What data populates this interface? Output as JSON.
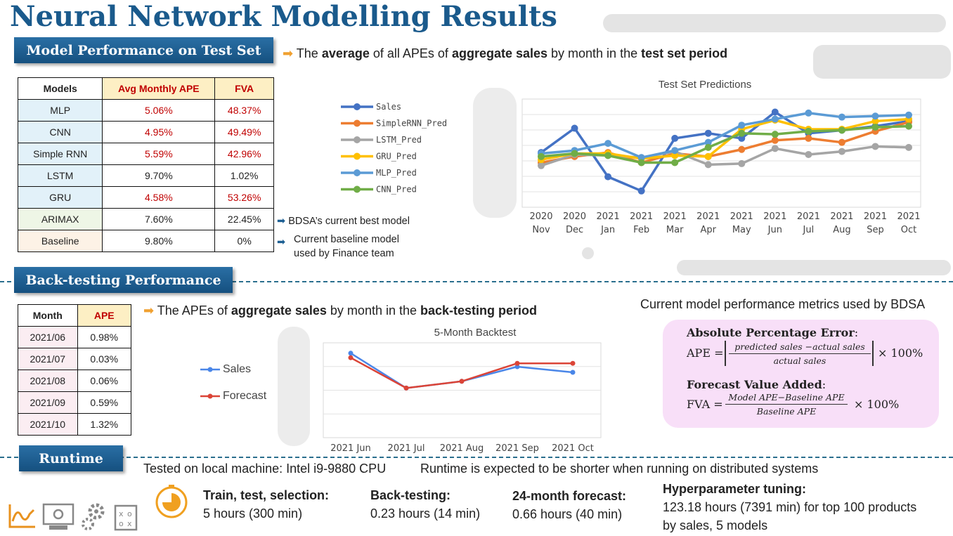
{
  "title": "Neural Network Modelling Results",
  "sections": {
    "test": "Model Performance on Test Set",
    "backtest": "Back-testing Performance",
    "runtime": "Runtime"
  },
  "test_desc": {
    "p1": "The ",
    "b1": "average",
    "p2": " of all APEs of ",
    "b2": "aggregate sales",
    "p3": " by month in the ",
    "b3": "test set period"
  },
  "perf_table": {
    "headers": [
      "Models",
      "Avg Monthly APE",
      "FVA"
    ],
    "rows": [
      {
        "model": "MLP",
        "ape": "5.06%",
        "fva": "48.37%"
      },
      {
        "model": "CNN",
        "ape": "4.95%",
        "fva": "49.49%"
      },
      {
        "model": "Simple RNN",
        "ape": "5.59%",
        "fva": "42.96%"
      },
      {
        "model": "LSTM",
        "ape": "9.70%",
        "fva": "1.02%"
      },
      {
        "model": "GRU",
        "ape": "4.58%",
        "fva": "53.26%"
      },
      {
        "model": "ARIMAX",
        "ape": "7.60%",
        "fva": "22.45%"
      },
      {
        "model": "Baseline",
        "ape": "9.80%",
        "fva": "0%"
      }
    ]
  },
  "notes": {
    "arimax": "BDSA’s current best model",
    "baseline_l1": "Current baseline model",
    "baseline_l2": "used by Finance team"
  },
  "backtest_desc": {
    "p1": "The APEs of ",
    "b1": "aggregate sales",
    "p2": " by month in the ",
    "b2": "back-testing period"
  },
  "backtest_table": {
    "headers": [
      "Month",
      "APE"
    ],
    "rows": [
      {
        "month": "2021/06",
        "ape": "0.98%"
      },
      {
        "month": "2021/07",
        "ape": "0.03%"
      },
      {
        "month": "2021/08",
        "ape": "0.06%"
      },
      {
        "month": "2021/09",
        "ape": "0.59%"
      },
      {
        "month": "2021/10",
        "ape": "1.32%"
      }
    ]
  },
  "metrics": {
    "heading": "Current model performance metrics used by BDSA",
    "ape_title": "Absolute Percentage Error",
    "ape_lhs": "APE = ",
    "ape_num": "predicted sales −actual sales",
    "ape_den": "actual sales",
    "ape_rhs": "× 100%",
    "fva_title": "Forecast Value Added",
    "fva_lhs": "FVA = ",
    "fva_num": "Model APE−Baseline APE",
    "fva_den": "Baseline APE",
    "fva_rhs": "× 100%"
  },
  "runtime": {
    "machine": "Tested on local machine: Intel i9-9880 CPU",
    "note": "Runtime is expected to be shorter when running on distributed systems",
    "items": [
      {
        "label": "Train, test, selection:",
        "value": "5 hours (300 min)"
      },
      {
        "label": "Back-testing:",
        "value": "0.23 hours (14 min)"
      },
      {
        "label": "24-month forecast:",
        "value": "0.66 hours (40 min)"
      },
      {
        "label": "Hyperparameter tuning:",
        "value": "123.18 hours (7391 min) for top 100 products",
        "value2": "by sales, 5 models"
      }
    ]
  },
  "chart_data": [
    {
      "type": "line",
      "title": "Test Set Predictions",
      "categories": [
        "2020|Nov",
        "2020|Dec",
        "2021|Jan",
        "2021|Feb",
        "2021|Mar",
        "2021|Apr",
        "2021|May",
        "2021|Jun",
        "2021|Jul",
        "2021|Aug",
        "2021|Sep",
        "2021|Oct"
      ],
      "ylim": [
        0,
        100
      ],
      "grid": true,
      "legend_position": "left",
      "series": [
        {
          "name": "Sales",
          "color": "#4472c4",
          "values": [
            43,
            67,
            19,
            5,
            57,
            62,
            57,
            83,
            62,
            65,
            69,
            74
          ]
        },
        {
          "name": "SimpleRNN_Pred",
          "color": "#ed7d31",
          "values": [
            33,
            39,
            43,
            33,
            42,
            39,
            46,
            55,
            57,
            53,
            64,
            73
          ]
        },
        {
          "name": "LSTM_Pred",
          "color": "#a5a5a5",
          "values": [
            30,
            41,
            40,
            38,
            44,
            31,
            32,
            47,
            41,
            44,
            49,
            48
          ]
        },
        {
          "name": "GRU_Pred",
          "color": "#ffc000",
          "values": [
            36,
            42,
            42,
            37,
            40,
            39,
            66,
            75,
            66,
            66,
            74,
            76
          ]
        },
        {
          "name": "MLP_Pred",
          "color": "#5b9bd5",
          "values": [
            42,
            45,
            52,
            38,
            45,
            53,
            70,
            76,
            82,
            78,
            79,
            80
          ]
        },
        {
          "name": "CNN_Pred",
          "color": "#70ad47",
          "values": [
            39,
            42,
            40,
            33,
            33,
            48,
            62,
            61,
            64,
            65,
            68,
            69
          ]
        }
      ]
    },
    {
      "type": "line",
      "title": "5-Month Backtest",
      "categories": [
        "2021 Jun",
        "2021 Jul",
        "2021 Aug",
        "2021 Sep",
        "2021 Oct"
      ],
      "ylim": [
        0,
        100
      ],
      "grid": true,
      "legend_position": "left",
      "series": [
        {
          "name": "Sales",
          "color": "#4a86e8",
          "values": [
            72,
            41,
            47,
            60,
            55
          ]
        },
        {
          "name": "Forecast",
          "color": "#db4437",
          "values": [
            68,
            41,
            47,
            63,
            63
          ]
        }
      ]
    }
  ],
  "colors": {
    "title": "#1a5a8c",
    "banner": "#1d5f93",
    "accent_orange": "#f0a030",
    "red": "#c00000"
  }
}
